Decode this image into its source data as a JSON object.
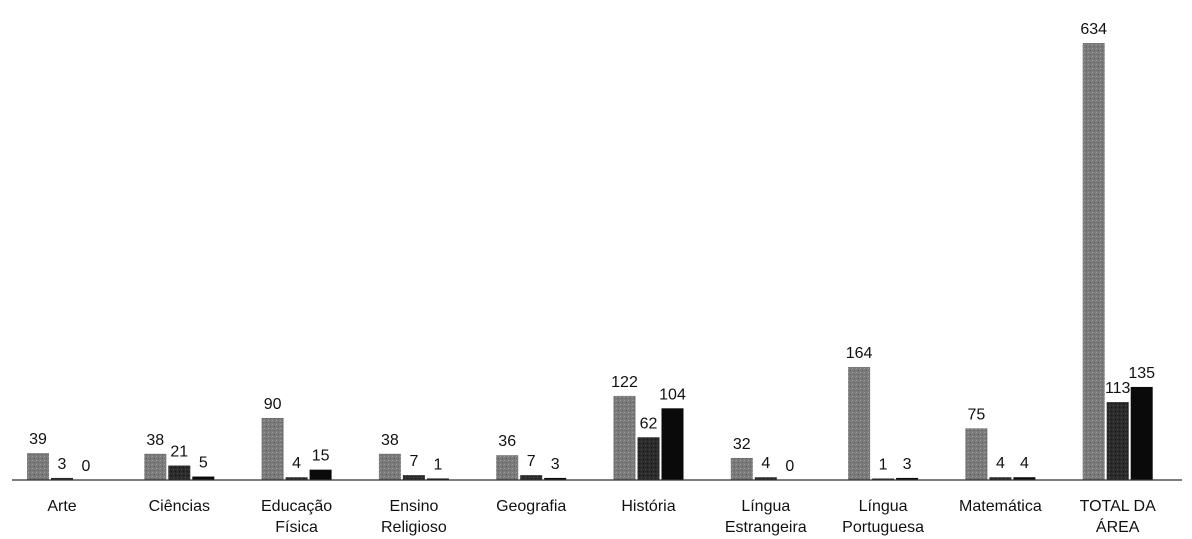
{
  "chart_data": {
    "type": "bar",
    "title": "",
    "xlabel": "",
    "ylabel": "",
    "ylim": [
      0,
      634
    ],
    "grid": false,
    "legend": "none",
    "categories": [
      [
        "Arte"
      ],
      [
        "Ciências"
      ],
      [
        "Educação",
        "Física"
      ],
      [
        "Ensino",
        "Religioso"
      ],
      [
        "Geografia"
      ],
      [
        "História"
      ],
      [
        "Língua",
        "Estrangeira"
      ],
      [
        "Língua",
        "Portuguesa"
      ],
      [
        "Matemática"
      ],
      [
        "TOTAL DA",
        "ÁREA"
      ]
    ],
    "series": [
      {
        "values": [
          39,
          38,
          90,
          38,
          36,
          122,
          32,
          164,
          75,
          634
        ],
        "color": "#7a7a7a"
      },
      {
        "values": [
          3,
          21,
          4,
          7,
          7,
          62,
          4,
          1,
          4,
          113
        ],
        "color": "#2b2b2b"
      },
      {
        "values": [
          0,
          5,
          15,
          1,
          3,
          104,
          0,
          3,
          4,
          135
        ],
        "color": "#0a0a0a"
      }
    ]
  }
}
